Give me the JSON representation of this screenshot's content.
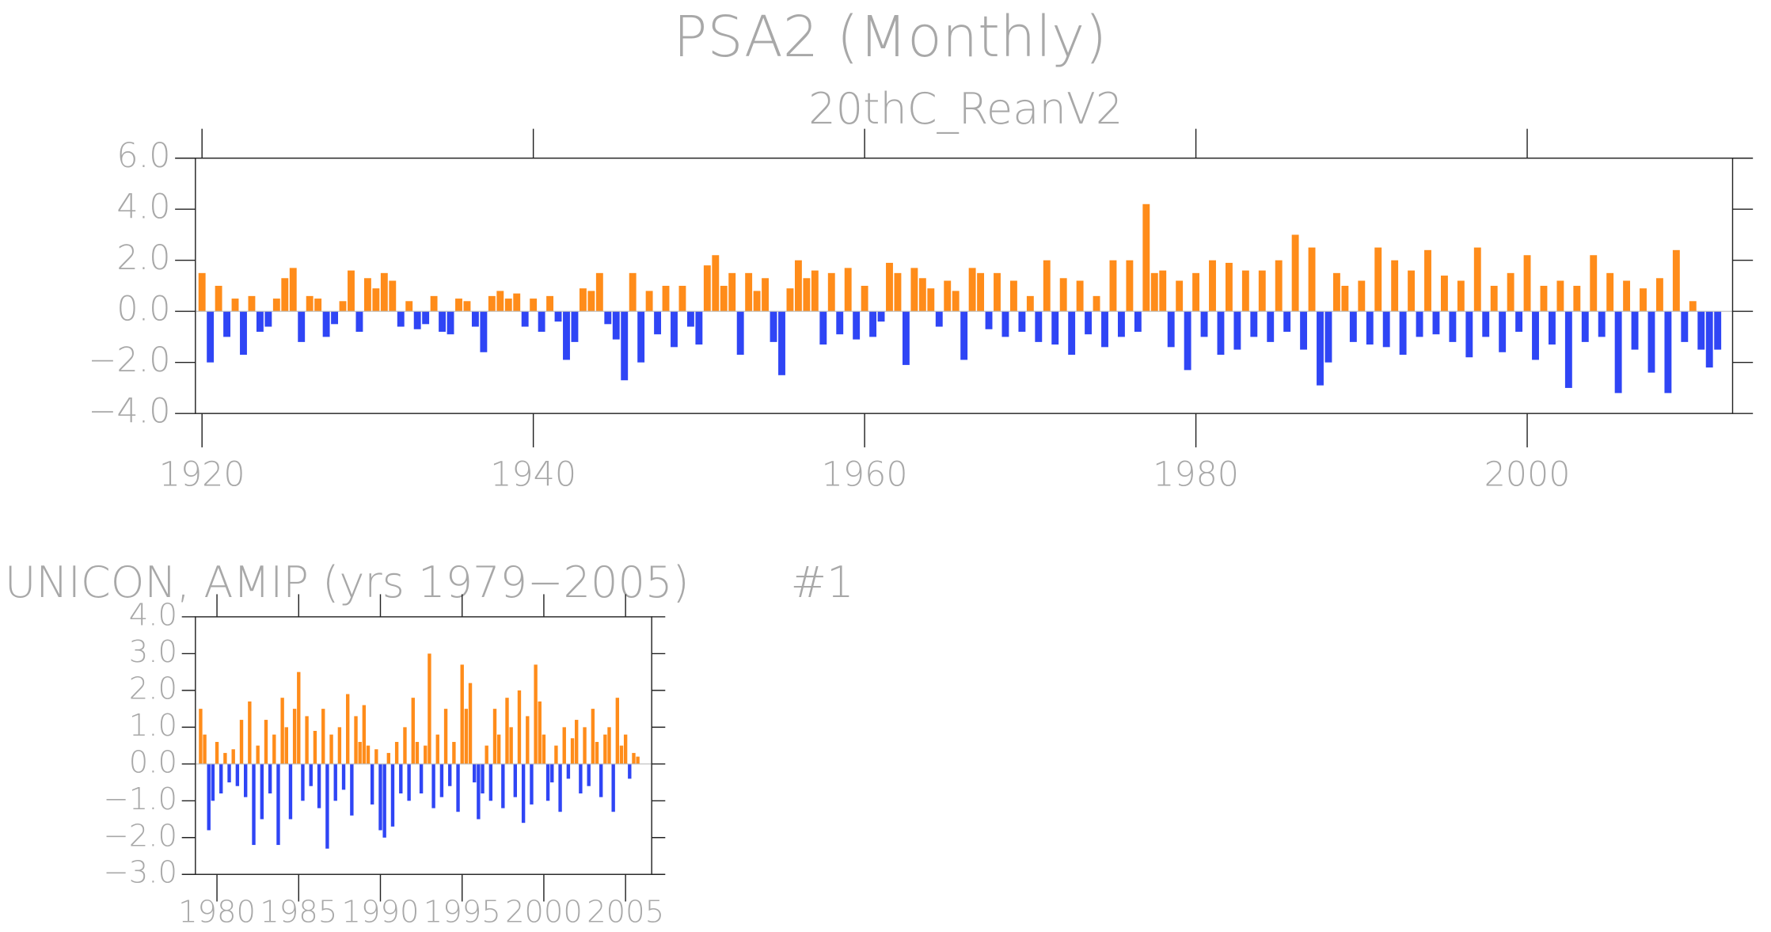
{
  "chart_data": [
    {
      "type": "bar",
      "title": "PSA2 (Monthly)",
      "subtitle": "20thC_ReanV2",
      "pos_color": "#ff8c1a",
      "neg_color": "#2f45f5",
      "xlim": [
        1919.6,
        2012.4
      ],
      "xticks": [
        1920,
        1940,
        1960,
        1980,
        2000
      ],
      "ylim": [
        -4.0,
        6.0
      ],
      "yticks": [
        {
          "value": -4.0,
          "label": "−4.0"
        },
        {
          "value": -2.0,
          "label": "−2.0"
        },
        {
          "value": 0.0,
          "label": "0.0"
        },
        {
          "value": 2.0,
          "label": "2.0"
        },
        {
          "value": 4.0,
          "label": "4.0"
        },
        {
          "value": 6.0,
          "label": "6.0"
        }
      ],
      "x": [
        1920,
        1920.5,
        1921,
        1921.5,
        1922,
        1922.5,
        1923,
        1923.5,
        1924,
        1924.5,
        1925,
        1925.5,
        1926,
        1926.5,
        1927,
        1927.5,
        1928,
        1928.5,
        1929,
        1929.5,
        1930,
        1930.5,
        1931,
        1931.5,
        1932,
        1932.5,
        1933,
        1933.5,
        1934,
        1934.5,
        1935,
        1935.5,
        1936,
        1936.5,
        1937,
        1937.5,
        1938,
        1938.5,
        1939,
        1939.5,
        1940,
        1940.5,
        1941,
        1941.5,
        1942,
        1942.5,
        1943,
        1943.5,
        1944,
        1944.5,
        1945,
        1945.5,
        1946,
        1946.5,
        1947,
        1947.5,
        1948,
        1948.5,
        1949,
        1949.5,
        1950,
        1950.5,
        1951,
        1951.5,
        1952,
        1952.5,
        1953,
        1953.5,
        1954,
        1954.5,
        1955,
        1955.5,
        1956,
        1956.5,
        1957,
        1957.5,
        1958,
        1958.5,
        1959,
        1959.5,
        1960,
        1960.5,
        1961,
        1961.5,
        1962,
        1962.5,
        1963,
        1963.5,
        1964,
        1964.5,
        1965,
        1965.5,
        1966,
        1966.5,
        1967,
        1967.5,
        1968,
        1968.5,
        1969,
        1969.5,
        1970,
        1970.5,
        1971,
        1971.5,
        1972,
        1972.5,
        1973,
        1973.5,
        1974,
        1974.5,
        1975,
        1975.5,
        1976,
        1976.5,
        1977,
        1977.5,
        1978,
        1978.5,
        1979,
        1979.5,
        1980,
        1980.5,
        1981,
        1981.5,
        1982,
        1982.5,
        1983,
        1983.5,
        1984,
        1984.5,
        1985,
        1985.5,
        1986,
        1986.5,
        1987,
        1987.5,
        1988,
        1988.5,
        1989,
        1989.5,
        1990,
        1990.5,
        1991,
        1991.5,
        1992,
        1992.5,
        1993,
        1993.5,
        1994,
        1994.5,
        1995,
        1995.5,
        1996,
        1996.5,
        1997,
        1997.5,
        1998,
        1998.5,
        1999,
        1999.5,
        2000,
        2000.5,
        2001,
        2001.5,
        2002,
        2002.5,
        2003,
        2003.5,
        2004,
        2004.5,
        2005,
        2005.5,
        2006,
        2006.5,
        2007,
        2007.5,
        2008,
        2008.5,
        2009,
        2009.5,
        2010,
        2010.5,
        2011,
        2011.5
      ],
      "values": [
        1.5,
        -2.0,
        1.0,
        -1.0,
        0.5,
        -1.7,
        0.6,
        -0.8,
        -0.6,
        0.5,
        1.3,
        1.7,
        -1.2,
        0.6,
        0.5,
        -1.0,
        -0.5,
        0.4,
        1.6,
        -0.8,
        1.3,
        0.9,
        1.5,
        1.2,
        -0.6,
        0.4,
        -0.7,
        -0.5,
        0.6,
        -0.8,
        -0.9,
        0.5,
        0.4,
        -0.6,
        -1.6,
        0.6,
        0.8,
        0.5,
        0.7,
        -0.6,
        0.5,
        -0.8,
        0.6,
        -0.4,
        -1.9,
        -1.2,
        0.9,
        0.8,
        1.5,
        -0.5,
        -1.1,
        -2.7,
        1.5,
        -2.0,
        0.8,
        -0.9,
        1.0,
        -1.4,
        1.0,
        -0.6,
        -1.3,
        1.8,
        2.2,
        1.0,
        1.5,
        -1.7,
        1.5,
        0.8,
        1.3,
        -1.2,
        -2.5,
        0.9,
        2.0,
        1.3,
        1.6,
        -1.3,
        1.5,
        -0.9,
        1.7,
        -1.1,
        1.0,
        -1.0,
        -0.4,
        1.9,
        1.5,
        -2.1,
        1.7,
        1.3,
        0.9,
        -0.6,
        1.2,
        0.8,
        -1.9,
        1.7,
        1.5,
        -0.7,
        1.5,
        -1.0,
        1.2,
        -0.8,
        0.6,
        -1.2,
        2.0,
        -1.3,
        1.3,
        -1.7,
        1.2,
        -0.9,
        0.6,
        -1.4,
        2.0,
        -1.0,
        2.0,
        -0.8,
        4.2,
        1.5,
        1.6,
        -1.4,
        1.2,
        -2.3,
        1.5,
        -1.0,
        2.0,
        -1.7,
        1.9,
        -1.5,
        1.6,
        -1.0,
        1.6,
        -1.2,
        2.0,
        -0.8,
        3.0,
        -1.5,
        2.5,
        -2.9,
        -2.0,
        1.5,
        1.0,
        -1.2,
        1.2,
        -1.3,
        2.5,
        -1.4,
        2.0,
        -1.7,
        1.6,
        -1.0,
        2.4,
        -0.9,
        1.4,
        -1.2,
        1.2,
        -1.8,
        2.5,
        -1.0,
        1.0,
        -1.6,
        1.5,
        -0.8,
        2.2,
        -1.9,
        1.0,
        -1.3,
        1.2,
        -3.0,
        1.0,
        -1.2,
        2.2,
        -1.0,
        1.5,
        -3.2,
        1.2,
        -1.5,
        0.9,
        -2.4,
        1.3,
        -3.2,
        2.4,
        -1.2,
        0.4,
        -1.5,
        -2.2,
        -1.5
      ]
    },
    {
      "type": "bar",
      "title": "UNICON, AMIP (yrs 1979−2005)",
      "annotation": "#1",
      "pos_color": "#ff8c1a",
      "neg_color": "#2f45f5",
      "xlim": [
        1978.68,
        2006.6
      ],
      "xticks": [
        1980,
        1985,
        1990,
        1995,
        2000,
        2005
      ],
      "ylim": [
        -3.0,
        4.0
      ],
      "yticks": [
        {
          "value": -3.0,
          "label": "−3.0"
        },
        {
          "value": -2.0,
          "label": "−2.0"
        },
        {
          "value": -1.0,
          "label": "−1.0"
        },
        {
          "value": 0.0,
          "label": "0.0"
        },
        {
          "value": 1.0,
          "label": "1.0"
        },
        {
          "value": 2.0,
          "label": "2.0"
        },
        {
          "value": 3.0,
          "label": "3.0"
        },
        {
          "value": 4.0,
          "label": "4.0"
        }
      ],
      "x": [
        1979,
        1979.25,
        1979.5,
        1979.75,
        1980,
        1980.25,
        1980.5,
        1980.75,
        1981,
        1981.25,
        1981.5,
        1981.75,
        1982,
        1982.25,
        1982.5,
        1982.75,
        1983,
        1983.25,
        1983.5,
        1983.75,
        1984,
        1984.25,
        1984.5,
        1984.75,
        1985,
        1985.25,
        1985.5,
        1985.75,
        1986,
        1986.25,
        1986.5,
        1986.75,
        1987,
        1987.25,
        1987.5,
        1987.75,
        1988,
        1988.25,
        1988.5,
        1988.75,
        1989,
        1989.25,
        1989.5,
        1989.75,
        1990,
        1990.25,
        1990.5,
        1990.75,
        1991,
        1991.25,
        1991.5,
        1991.75,
        1992,
        1992.25,
        1992.5,
        1992.75,
        1993,
        1993.25,
        1993.5,
        1993.75,
        1994,
        1994.25,
        1994.5,
        1994.75,
        1995,
        1995.25,
        1995.5,
        1995.75,
        1996,
        1996.25,
        1996.5,
        1996.75,
        1997,
        1997.25,
        1997.5,
        1997.75,
        1998,
        1998.25,
        1998.5,
        1998.75,
        1999,
        1999.25,
        1999.5,
        1999.75,
        2000,
        2000.25,
        2000.5,
        2000.75,
        2001,
        2001.25,
        2001.5,
        2001.75,
        2002,
        2002.25,
        2002.5,
        2002.75,
        2003,
        2003.25,
        2003.5,
        2003.75,
        2004,
        2004.25,
        2004.5,
        2004.75,
        2005,
        2005.25,
        2005.5,
        2005.75
      ],
      "values": [
        1.5,
        0.8,
        -1.8,
        -1.0,
        0.6,
        -0.8,
        0.3,
        -0.5,
        0.4,
        -0.6,
        1.2,
        -0.9,
        1.7,
        -2.2,
        0.5,
        -1.5,
        1.2,
        -0.8,
        0.8,
        -2.2,
        1.8,
        1.0,
        -1.5,
        1.5,
        2.5,
        -1.0,
        1.3,
        -0.6,
        0.9,
        -1.2,
        1.5,
        -2.3,
        0.8,
        -1.0,
        1.0,
        -0.7,
        1.9,
        -1.4,
        1.3,
        0.6,
        1.6,
        0.5,
        -1.1,
        0.4,
        -1.8,
        -2.0,
        0.3,
        -1.7,
        0.6,
        -0.8,
        1.0,
        -1.0,
        1.8,
        0.6,
        -0.8,
        0.5,
        3.0,
        -1.2,
        0.8,
        -0.9,
        1.5,
        -0.6,
        0.6,
        -1.3,
        2.7,
        1.5,
        2.2,
        -0.5,
        -1.5,
        -0.8,
        0.5,
        -1.0,
        1.5,
        0.8,
        -1.2,
        1.8,
        1.0,
        -0.9,
        2.0,
        -1.6,
        1.3,
        -1.1,
        2.7,
        1.7,
        0.8,
        -1.0,
        -0.5,
        0.5,
        -1.3,
        1.0,
        -0.4,
        0.7,
        1.2,
        -0.8,
        1.0,
        -0.6,
        1.5,
        0.6,
        -0.9,
        0.8,
        1.0,
        -1.3,
        1.8,
        0.5,
        0.8,
        -0.4,
        0.3,
        0.2
      ]
    }
  ]
}
